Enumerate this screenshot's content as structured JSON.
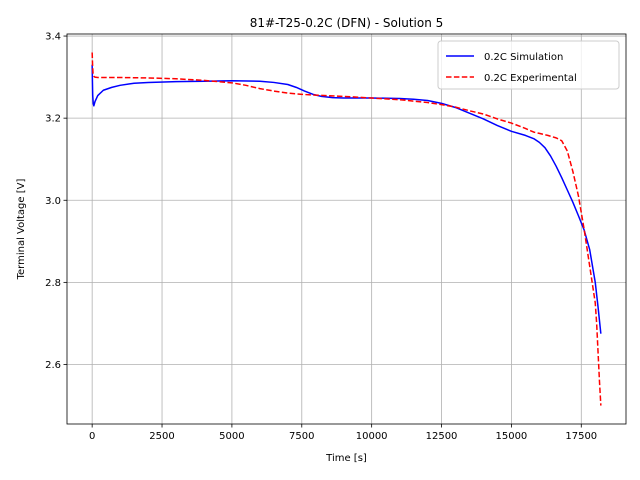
{
  "chart_data": {
    "type": "line",
    "title": "81#-T25-0.2C (DFN) - Solution 5",
    "xlabel": "Time [s]",
    "ylabel": "Terminal Voltage [V]",
    "xlim": [
      -900,
      19100
    ],
    "ylim": [
      2.455,
      3.405
    ],
    "xticks": [
      0,
      2500,
      5000,
      7500,
      10000,
      12500,
      15000,
      17500
    ],
    "yticks": [
      2.6,
      2.8,
      3.0,
      3.2,
      3.4
    ],
    "xtick_labels": [
      "0",
      "2500",
      "5000",
      "7500",
      "10000",
      "12500",
      "15000",
      "17500"
    ],
    "ytick_labels": [
      "2.6",
      "2.8",
      "3.0",
      "3.2",
      "3.4"
    ],
    "grid": true,
    "legend_position": "top-right",
    "series": [
      {
        "name": "0.2C Simulation",
        "color": "#0000ff",
        "style": "solid",
        "x": [
          0,
          10,
          20,
          40,
          60,
          100,
          200,
          400,
          700,
          1000,
          1500,
          2000,
          3000,
          4000,
          5000,
          6000,
          6500,
          7000,
          7300,
          7600,
          7900,
          8200,
          8600,
          9000,
          10000,
          11000,
          11500,
          12000,
          12500,
          13000,
          13500,
          14000,
          14500,
          15000,
          15500,
          15800,
          16000,
          16200,
          16400,
          16600,
          16800,
          17000,
          17200,
          17400,
          17600,
          17800,
          18000,
          18100,
          18200
        ],
        "y": [
          3.33,
          3.29,
          3.255,
          3.235,
          3.23,
          3.24,
          3.255,
          3.268,
          3.275,
          3.28,
          3.285,
          3.287,
          3.289,
          3.29,
          3.291,
          3.29,
          3.287,
          3.282,
          3.275,
          3.266,
          3.258,
          3.253,
          3.25,
          3.249,
          3.249,
          3.248,
          3.246,
          3.243,
          3.236,
          3.226,
          3.212,
          3.198,
          3.182,
          3.168,
          3.158,
          3.15,
          3.141,
          3.128,
          3.108,
          3.083,
          3.055,
          3.025,
          2.995,
          2.962,
          2.928,
          2.88,
          2.8,
          2.74,
          2.675
        ]
      },
      {
        "name": "0.2C Experimental",
        "color": "#ff0000",
        "style": "dashed",
        "x": [
          0,
          15,
          30,
          60,
          100,
          200,
          500,
          1000,
          2000,
          3000,
          4000,
          5000,
          5500,
          6000,
          6500,
          7000,
          7500,
          8000,
          9000,
          10000,
          11000,
          12000,
          12500,
          13000,
          13500,
          14000,
          14500,
          15000,
          15500,
          15800,
          16000,
          16300,
          16600,
          16800,
          17000,
          17200,
          17400,
          17600,
          17800,
          18000,
          18050,
          18100,
          18150,
          18200
        ],
        "y": [
          3.36,
          3.33,
          3.31,
          3.302,
          3.3,
          3.299,
          3.299,
          3.299,
          3.298,
          3.296,
          3.292,
          3.286,
          3.28,
          3.272,
          3.266,
          3.261,
          3.258,
          3.256,
          3.253,
          3.249,
          3.245,
          3.238,
          3.233,
          3.227,
          3.218,
          3.21,
          3.198,
          3.188,
          3.175,
          3.166,
          3.163,
          3.158,
          3.152,
          3.145,
          3.12,
          3.07,
          3.01,
          2.93,
          2.84,
          2.75,
          2.7,
          2.63,
          2.56,
          2.5
        ]
      }
    ]
  }
}
